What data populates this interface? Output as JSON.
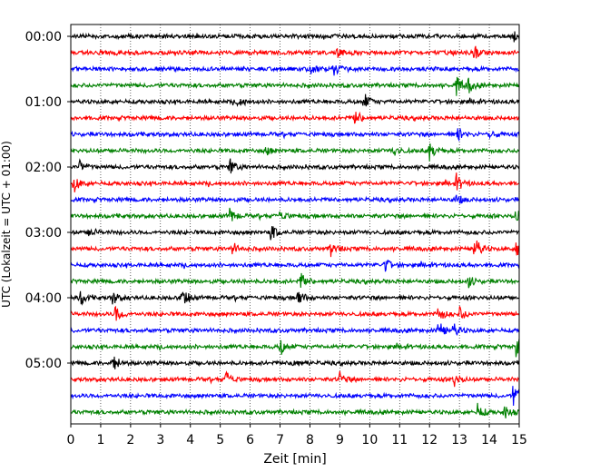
{
  "chart_data": {
    "type": "line",
    "title": "",
    "xlabel": "Zeit  [min]",
    "ylabel": "UTC (Lokalzeit = UTC + 01:00)",
    "xlim": [
      0,
      15
    ],
    "x_ticks": [
      "0",
      "1",
      "2",
      "3",
      "4",
      "5",
      "6",
      "7",
      "8",
      "9",
      "10",
      "11",
      "12",
      "13",
      "14",
      "15"
    ],
    "y_ticks": [
      "00:00",
      "01:00",
      "02:00",
      "03:00",
      "04:00",
      "05:00"
    ],
    "grid": "vertical dotted at each minute",
    "trace_minutes": 15,
    "trace_colors": [
      "#000000",
      "#ff0000",
      "#0000ff",
      "#008000"
    ],
    "traces": [
      {
        "start": "00:00",
        "events": [
          {
            "t": 14.8,
            "amp": 0.35
          }
        ]
      },
      {
        "start": "00:15",
        "events": [
          {
            "t": 8.9,
            "amp": 0.3
          },
          {
            "t": 13.5,
            "amp": 0.4
          }
        ]
      },
      {
        "start": "00:30",
        "events": [
          {
            "t": 8.8,
            "amp": 0.4
          },
          {
            "t": 8.0,
            "amp": 0.3
          }
        ]
      },
      {
        "start": "00:45",
        "events": [
          {
            "t": 12.9,
            "amp": 0.55
          },
          {
            "t": 13.3,
            "amp": 0.4
          }
        ]
      },
      {
        "start": "01:00",
        "events": [
          {
            "t": 9.8,
            "amp": 0.55
          },
          {
            "t": 5.6,
            "amp": 0.35
          }
        ]
      },
      {
        "start": "01:15",
        "events": [
          {
            "t": 9.5,
            "amp": 0.55
          }
        ]
      },
      {
        "start": "01:30",
        "events": [
          {
            "t": 12.9,
            "amp": 0.5
          },
          {
            "t": 14.0,
            "amp": 0.3
          }
        ]
      },
      {
        "start": "01:45",
        "events": [
          {
            "t": 12.0,
            "amp": 0.6
          },
          {
            "t": 6.5,
            "amp": 0.3
          },
          {
            "t": 10.8,
            "amp": 0.35
          }
        ]
      },
      {
        "start": "02:00",
        "events": [
          {
            "t": 5.3,
            "amp": 0.55
          },
          {
            "t": 0.3,
            "amp": 0.4
          }
        ]
      },
      {
        "start": "02:15",
        "events": [
          {
            "t": 0.1,
            "amp": 0.55
          },
          {
            "t": 12.9,
            "amp": 0.5
          }
        ]
      },
      {
        "start": "02:30",
        "events": [
          {
            "t": 12.9,
            "amp": 0.3
          }
        ]
      },
      {
        "start": "02:45",
        "events": [
          {
            "t": 5.3,
            "amp": 0.55
          },
          {
            "t": 14.9,
            "amp": 0.45
          },
          {
            "t": 7.0,
            "amp": 0.35
          }
        ]
      },
      {
        "start": "03:00",
        "events": [
          {
            "t": 6.7,
            "amp": 0.5
          },
          {
            "t": 0.6,
            "amp": 0.3
          }
        ]
      },
      {
        "start": "03:15",
        "events": [
          {
            "t": 13.5,
            "amp": 0.8
          },
          {
            "t": 14.9,
            "amp": 0.6
          },
          {
            "t": 8.7,
            "amp": 0.45
          },
          {
            "t": 5.4,
            "amp": 0.4
          }
        ]
      },
      {
        "start": "03:30",
        "events": [
          {
            "t": 10.5,
            "amp": 0.45
          }
        ]
      },
      {
        "start": "03:45",
        "events": [
          {
            "t": 7.7,
            "amp": 0.5
          },
          {
            "t": 13.3,
            "amp": 0.35
          }
        ]
      },
      {
        "start": "04:00",
        "events": [
          {
            "t": 3.7,
            "amp": 0.8
          },
          {
            "t": 7.6,
            "amp": 0.55
          },
          {
            "t": 0.3,
            "amp": 0.5
          },
          {
            "t": 1.4,
            "amp": 0.45
          }
        ]
      },
      {
        "start": "04:15",
        "events": [
          {
            "t": 1.5,
            "amp": 0.55
          },
          {
            "t": 12.3,
            "amp": 0.5
          },
          {
            "t": 13.0,
            "amp": 0.45
          }
        ]
      },
      {
        "start": "04:30",
        "events": [
          {
            "t": 12.3,
            "amp": 0.6
          },
          {
            "t": 12.8,
            "amp": 0.4
          }
        ]
      },
      {
        "start": "04:45",
        "events": [
          {
            "t": 14.9,
            "amp": 0.7
          },
          {
            "t": 7.0,
            "amp": 0.55
          }
        ]
      },
      {
        "start": "05:00",
        "events": [
          {
            "t": 1.4,
            "amp": 0.6
          },
          {
            "t": 7.4,
            "amp": 0.45
          }
        ]
      },
      {
        "start": "05:15",
        "events": [
          {
            "t": 5.2,
            "amp": 0.5
          },
          {
            "t": 9.0,
            "amp": 0.4
          },
          {
            "t": 12.8,
            "amp": 0.45
          }
        ]
      },
      {
        "start": "05:30",
        "events": [
          {
            "t": 14.8,
            "amp": 0.75
          }
        ]
      },
      {
        "start": "05:45",
        "events": [
          {
            "t": 13.6,
            "amp": 0.5
          },
          {
            "t": 14.5,
            "amp": 0.45
          }
        ]
      }
    ]
  }
}
